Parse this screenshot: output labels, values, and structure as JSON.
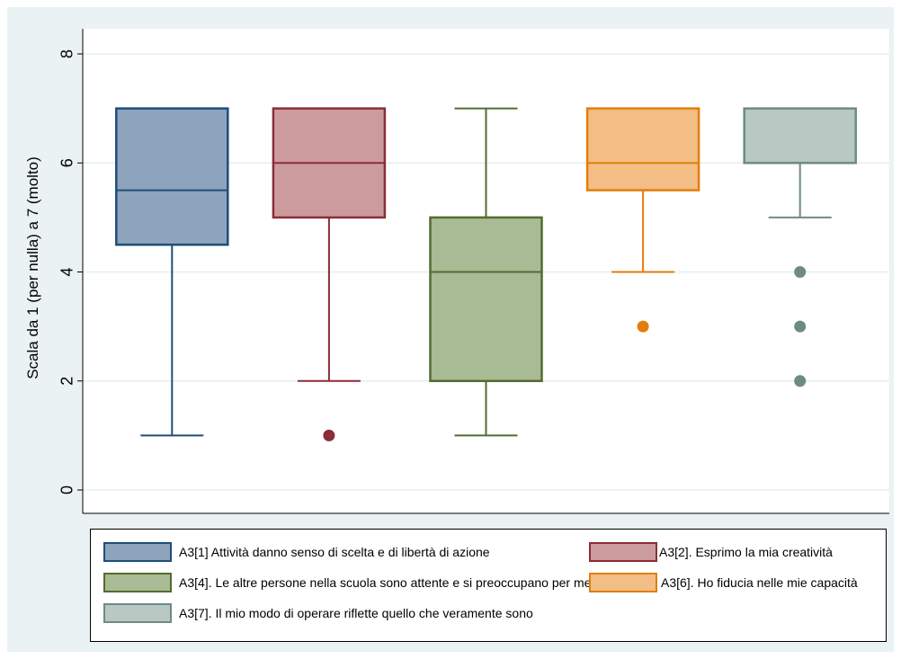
{
  "chart_data": {
    "type": "box",
    "ylabel": "Scala da 1 (per nulla) a 7 (molto)",
    "ylim": [
      0,
      8
    ],
    "yticks": [
      0,
      2,
      4,
      6,
      8
    ],
    "grid": true,
    "legend_position": "bottom",
    "series": [
      {
        "name": "A3[1] Attività danno senso di scelta e di libertà di azione",
        "fill": "#8ea4bc",
        "edge": "#1f4e79",
        "min": 1,
        "q1": 4.5,
        "median": 5.5,
        "q3": 7,
        "max": 7,
        "outliers": []
      },
      {
        "name": "A3[2]. Esprimo  la mia creatività",
        "fill": "#cc9b9e",
        "edge": "#8b2d38",
        "min": 2,
        "q1": 5,
        "median": 6,
        "q3": 7,
        "max": 7,
        "outliers": [
          1
        ]
      },
      {
        "name": "A3[4]. Le  altre persone nella scuola sono attente e si preoccupano per me",
        "fill": "#a8bb95",
        "edge": "#556b2f",
        "min": 1,
        "q1": 2,
        "median": 4,
        "q3": 5,
        "max": 7,
        "outliers": []
      },
      {
        "name": "A3[6]. Ho  fiducia nelle mie capacità",
        "fill": "#f2be85",
        "edge": "#e37d0b",
        "min": 4,
        "q1": 5.5,
        "median": 6,
        "q3": 7,
        "max": 7,
        "outliers": [
          3
        ]
      },
      {
        "name": "A3[7]. Il  mio modo di operare riflette quello che veramente sono",
        "fill": "#b8c8c2",
        "edge": "#6d8b84",
        "min": 5,
        "q1": 6,
        "median": 6,
        "q3": 7,
        "max": 7,
        "outliers": [
          4,
          3,
          2
        ]
      }
    ]
  }
}
